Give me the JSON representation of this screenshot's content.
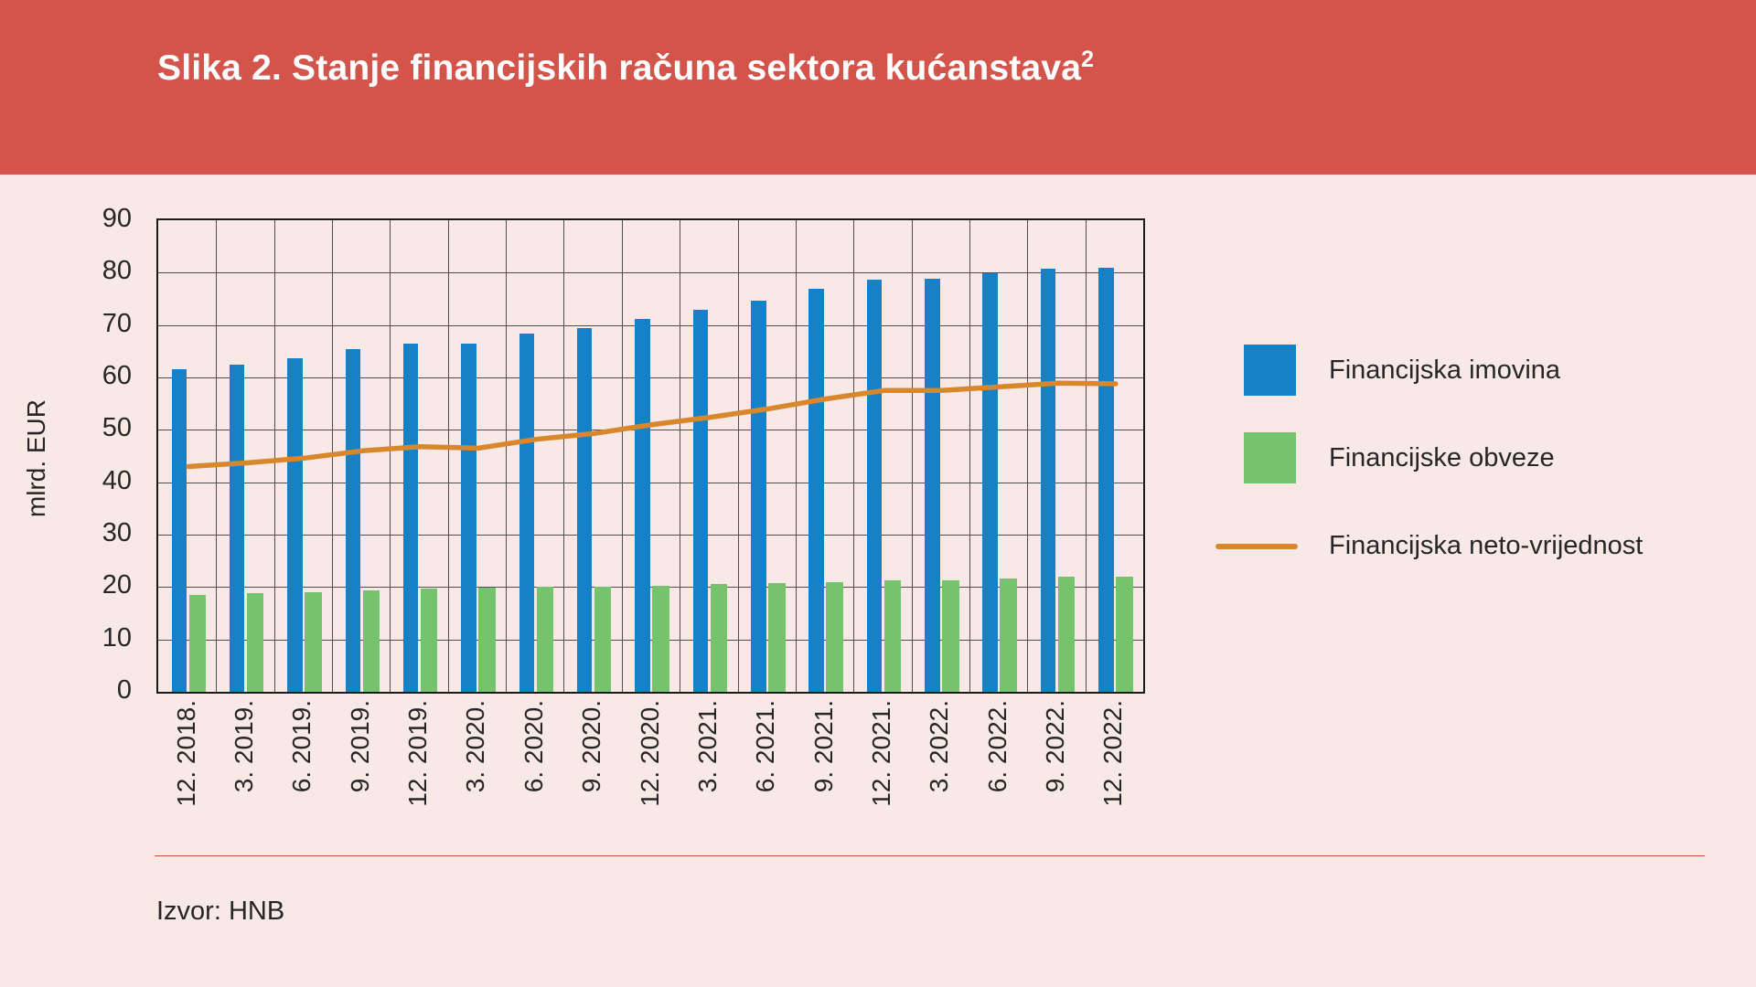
{
  "header": {
    "title": "Slika 2. Stanje financijskih računa sektora kućanstava",
    "title_superscript": "2"
  },
  "chart_data": {
    "type": "bar",
    "title": "Stanje financijskih računa sektora kućanstava",
    "categories": [
      "12. 2018.",
      "3. 2019.",
      "6. 2019.",
      "9. 2019.",
      "12. 2019.",
      "3. 2020.",
      "6. 2020.",
      "9. 2020.",
      "12. 2020.",
      "3. 2021.",
      "6. 2021.",
      "9. 2021.",
      "12. 2021.",
      "3. 2022.",
      "6. 2022.",
      "9. 2022.",
      "12. 2022."
    ],
    "series": [
      {
        "name": "Financijska imovina",
        "type": "bar",
        "color": "#1781c5",
        "values": [
          61.5,
          62.5,
          63.7,
          65.4,
          66.5,
          66.4,
          68.3,
          69.4,
          71.2,
          72.9,
          74.7,
          76.9,
          78.7,
          78.8,
          79.9,
          80.8,
          80.9
        ]
      },
      {
        "name": "Financijske obveze",
        "type": "bar",
        "color": "#76c36d",
        "values": [
          18.5,
          18.8,
          19.1,
          19.4,
          19.7,
          19.9,
          20.1,
          20.1,
          20.2,
          20.5,
          20.7,
          21.0,
          21.2,
          21.3,
          21.7,
          21.9,
          22.0
        ]
      },
      {
        "name": "Financijska neto-vrijednost",
        "type": "line",
        "color": "#d8872c",
        "values": [
          43.0,
          43.7,
          44.6,
          46.0,
          46.8,
          46.5,
          48.2,
          49.3,
          51.0,
          52.4,
          54.0,
          55.9,
          57.5,
          57.5,
          58.2,
          58.9,
          58.8
        ]
      }
    ],
    "xlabel": "",
    "ylabel": "mlrd. EUR",
    "ylim": [
      0,
      90
    ],
    "ytick_step": 10,
    "grid": true,
    "legend_position": "right"
  },
  "source": {
    "label": "Izvor: HNB"
  },
  "colors": {
    "header_bg": "#d3544a",
    "page_bg": "#f9e9e6",
    "title_text": "#ffffff",
    "grid": "#4f4f4f",
    "plot_border": "#1a1a1a",
    "text": "#262626",
    "divider": "#cb4f41",
    "bar_blue": "#1781c5",
    "bar_green": "#76c36d",
    "line_orange": "#d8872c"
  }
}
